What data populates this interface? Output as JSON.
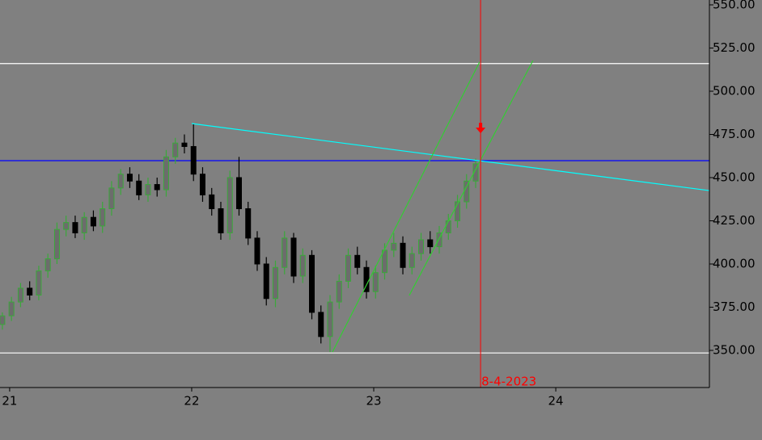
{
  "chart_data": {
    "type": "candlestick",
    "x": [
      20.96,
      21.01,
      21.06,
      21.11,
      21.16,
      21.21,
      21.26,
      21.31,
      21.36,
      21.41,
      21.46,
      21.51,
      21.56,
      21.61,
      21.66,
      21.71,
      21.76,
      21.81,
      21.86,
      21.91,
      21.96,
      22.01,
      22.06,
      22.11,
      22.16,
      22.21,
      22.26,
      22.31,
      22.36,
      22.41,
      22.46,
      22.51,
      22.56,
      22.61,
      22.66,
      22.71,
      22.76,
      22.81,
      22.86,
      22.91,
      22.96,
      23.01,
      23.06,
      23.11,
      23.16,
      23.21,
      23.26,
      23.31,
      23.36,
      23.41,
      23.46,
      23.51,
      23.56
    ],
    "open": [
      365,
      370,
      378,
      386,
      382,
      396,
      403,
      420,
      424,
      418,
      427,
      422,
      432,
      444,
      452,
      448,
      440,
      446,
      443,
      462,
      470,
      468,
      452,
      440,
      432,
      418,
      450,
      432,
      415,
      400,
      380,
      398,
      415,
      393,
      405,
      372,
      358,
      378,
      390,
      405,
      398,
      384,
      395,
      408,
      412,
      398,
      406,
      414,
      410,
      418,
      425,
      436,
      448
    ],
    "high": [
      372,
      381,
      389,
      390,
      399,
      406,
      424,
      428,
      428,
      430,
      431,
      436,
      448,
      455,
      456,
      452,
      450,
      450,
      466,
      473,
      475,
      481,
      456,
      444,
      436,
      454,
      462,
      436,
      419,
      404,
      402,
      419,
      418,
      409,
      408,
      376,
      382,
      394,
      409,
      410,
      402,
      399,
      412,
      418,
      416,
      410,
      418,
      419,
      422,
      429,
      440,
      452,
      461
    ],
    "low": [
      362,
      367,
      375,
      379,
      379,
      392,
      400,
      416,
      415,
      414,
      419,
      418,
      428,
      440,
      444,
      437,
      436,
      439,
      439,
      458,
      464,
      448,
      436,
      428,
      414,
      414,
      428,
      411,
      396,
      376,
      375,
      394,
      389,
      389,
      368,
      354,
      349,
      374,
      386,
      394,
      380,
      380,
      391,
      404,
      394,
      394,
      402,
      406,
      406,
      414,
      421,
      432,
      444
    ],
    "close": [
      370,
      378,
      386,
      382,
      396,
      403,
      420,
      424,
      418,
      427,
      422,
      432,
      444,
      452,
      448,
      440,
      446,
      443,
      462,
      470,
      468,
      452,
      440,
      432,
      418,
      450,
      432,
      415,
      400,
      380,
      398,
      415,
      393,
      405,
      372,
      358,
      378,
      390,
      405,
      398,
      384,
      395,
      408,
      412,
      398,
      406,
      414,
      410,
      418,
      425,
      436,
      448,
      458
    ],
    "up_color": "#3aa83a",
    "down_color": "#000000",
    "xlim": [
      20.947,
      24.844
    ],
    "ylim": [
      328.5,
      552.8
    ],
    "xticks": [
      21,
      22,
      23,
      24
    ],
    "yticks": [
      {
        "value": 350,
        "label": "350.00"
      },
      {
        "value": 375,
        "label": "375.00"
      },
      {
        "value": 400,
        "label": "400.00"
      },
      {
        "value": 425,
        "label": "425.00"
      },
      {
        "value": 450,
        "label": "450.00"
      },
      {
        "value": 475,
        "label": "475.00"
      },
      {
        "value": 500,
        "label": "500.00"
      },
      {
        "value": 525,
        "label": "525.00"
      },
      {
        "value": 550,
        "label": "550.00"
      }
    ],
    "hlines": [
      {
        "value": 516,
        "color": "#ffffff"
      },
      {
        "value": 348.5,
        "color": "#ffffff"
      },
      {
        "value": 459.8,
        "color": "#0000ff"
      }
    ],
    "trendlines": [
      {
        "x": [
          22.0,
          24.844
        ],
        "y": [
          481.3,
          442.5
        ],
        "color": "#00ffff"
      },
      {
        "x": [
          22.773,
          23.582
        ],
        "y": [
          349,
          517
        ],
        "color": "#33cc33"
      },
      {
        "x": [
          23.195,
          23.875
        ],
        "y": [
          381.8,
          517.8
        ],
        "color": "#33cc33"
      }
    ],
    "vline": {
      "x": 23.587,
      "label": "8-4-2023",
      "color": "#ff0000"
    },
    "arrow": {
      "x": 23.587,
      "y": 478,
      "color": "#ff0000"
    }
  }
}
